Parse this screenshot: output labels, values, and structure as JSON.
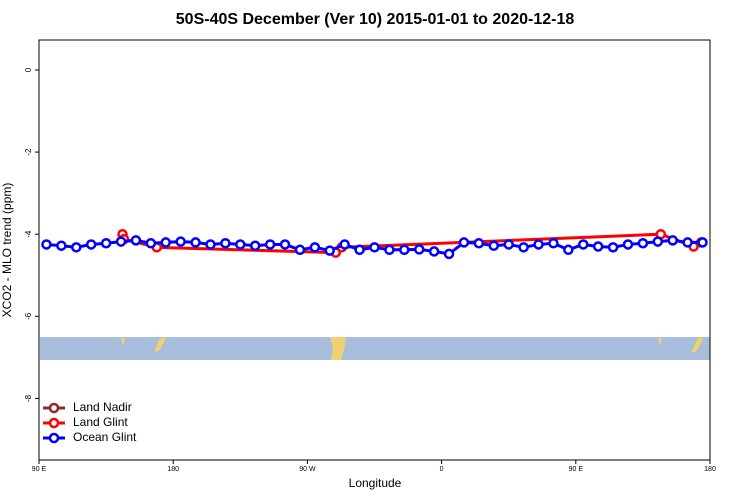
{
  "chart_data": {
    "type": "line",
    "title": "50S-40S December (Ver 10)   2015-01-01 to 2020-12-18",
    "x_label": "Longitude",
    "y_label": "XCO2 - MLO trend (ppm)",
    "xlim": [
      90,
      540
    ],
    "xticks": [
      {
        "value": 90,
        "label": "90 E"
      },
      180,
      {
        "value": 270,
        "label": "90 W"
      },
      {
        "value": 360,
        "label": "0"
      },
      {
        "value": 450,
        "label": "90 E"
      },
      {
        "value": 540,
        "label": "180"
      }
    ],
    "ylim": [
      -9.5,
      0.73
    ],
    "yticks": [
      0,
      -2,
      -4,
      -6,
      -8
    ],
    "legend_position": "bottom-left",
    "series": [
      {
        "name": "Land Nadir",
        "color": "#8b2a2a",
        "x": [],
        "values": []
      },
      {
        "name": "Land Glint",
        "color": "#ff0000",
        "x": [
          146,
          147,
          169,
          289,
          293,
          507,
          529,
          534
        ],
        "values": [
          -4.0,
          -4.12,
          -4.32,
          -4.45,
          -4.32,
          -4.0,
          -4.3,
          -4.2
        ]
      },
      {
        "name": "Ocean Glint",
        "color": "#0000ff",
        "x": [
          95,
          105,
          115,
          125,
          135,
          145,
          155,
          165,
          175,
          185,
          195,
          205,
          215,
          225,
          235,
          245,
          255,
          265,
          275,
          285,
          295,
          305,
          315,
          325,
          335,
          345,
          355,
          365,
          375,
          385,
          395,
          405,
          415,
          425,
          435,
          445,
          455,
          465,
          475,
          485,
          495,
          505,
          515,
          525,
          535
        ],
        "values": [
          -4.25,
          -4.28,
          -4.32,
          -4.25,
          -4.22,
          -4.18,
          -4.15,
          -4.22,
          -4.2,
          -4.18,
          -4.2,
          -4.25,
          -4.22,
          -4.25,
          -4.28,
          -4.25,
          -4.25,
          -4.38,
          -4.32,
          -4.4,
          -4.25,
          -4.38,
          -4.32,
          -4.38,
          -4.38,
          -4.37,
          -4.42,
          -4.48,
          -4.2,
          -4.22,
          -4.28,
          -4.25,
          -4.32,
          -4.25,
          -4.22,
          -4.38,
          -4.25,
          -4.3,
          -4.32,
          -4.25,
          -4.22,
          -4.18,
          -4.15,
          -4.2,
          -4.2
        ]
      }
    ]
  }
}
